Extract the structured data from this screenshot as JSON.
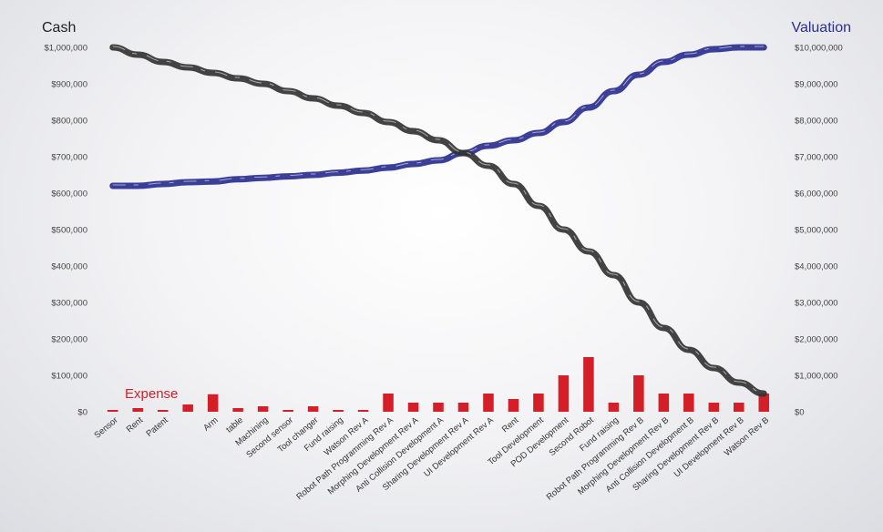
{
  "chart_data": {
    "type": "bar+line",
    "left_axis_title": "Cash",
    "right_axis_title": "Valuation",
    "expense_label": "Expense",
    "left_ticks": [
      "$0",
      "$100,000",
      "$200,000",
      "$300,000",
      "$400,000",
      "$500,000",
      "$600,000",
      "$700,000",
      "$800,000",
      "$900,000",
      "$1,000,000"
    ],
    "right_ticks": [
      "$0",
      "$1,000,000",
      "$2,000,000",
      "$3,000,000",
      "$4,000,000",
      "$5,000,000",
      "$6,000,000",
      "$7,000,000",
      "$8,000,000",
      "$9,000,000",
      "$10,000,000"
    ],
    "left_ylim": [
      0,
      1000000
    ],
    "right_ylim": [
      0,
      10000000
    ],
    "categories": [
      "Sensor",
      "Rent",
      "Patent",
      "",
      "Arm",
      "table",
      "Machining",
      "Second sensor",
      "Tool changer",
      "Fund raising",
      "Watson Rev A",
      "Robot Path Programming Rev A",
      "Morphing Development Rev A",
      "Anti Collision Development A",
      "Sharing Development Rev A",
      "UI Development Rev A",
      "Rent",
      "Tool Development",
      "POD Development",
      "Second Robot",
      "Fund raising",
      "Robot Path Programming Rev B",
      "Morphing Development Rev B",
      "Anti Collision Development B",
      "Sharing Development Rev B",
      "UI Development Rev B",
      "Watson Rev B"
    ],
    "series": [
      {
        "name": "Expense",
        "axis": "left",
        "color": "#d41f28",
        "values": [
          5000,
          10000,
          5000,
          20000,
          48000,
          10000,
          15000,
          5000,
          15000,
          5000,
          5000,
          50000,
          25000,
          25000,
          25000,
          50000,
          35000,
          50000,
          100000,
          150000,
          25000,
          100000,
          50000,
          50000,
          25000,
          25000,
          50000
        ]
      },
      {
        "name": "Cash",
        "axis": "left",
        "color": "#333333",
        "values": [
          1000000,
          980000,
          960000,
          945000,
          930000,
          915000,
          900000,
          880000,
          860000,
          840000,
          820000,
          795000,
          770000,
          745000,
          710000,
          675000,
          625000,
          565000,
          500000,
          440000,
          375000,
          300000,
          230000,
          170000,
          120000,
          80000,
          50000
        ]
      },
      {
        "name": "Valuation",
        "axis": "right",
        "color": "#2b2f8f",
        "values": [
          6200000,
          6200000,
          6250000,
          6300000,
          6320000,
          6380000,
          6420000,
          6460000,
          6500000,
          6560000,
          6620000,
          6700000,
          6800000,
          6900000,
          7100000,
          7300000,
          7450000,
          7650000,
          7950000,
          8350000,
          8800000,
          9250000,
          9600000,
          9800000,
          9950000,
          10000000,
          10000000
        ]
      }
    ]
  }
}
